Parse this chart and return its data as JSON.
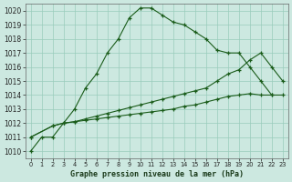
{
  "title": "Graphe pression niveau de la mer (hPa)",
  "bg_color": "#cce8e0",
  "grid_color": "#99ccbb",
  "line_color": "#1a5c1a",
  "x_labels": [
    "0",
    "1",
    "2",
    "3",
    "4",
    "5",
    "6",
    "7",
    "8",
    "9",
    "10",
    "11",
    "12",
    "13",
    "14",
    "15",
    "16",
    "17",
    "18",
    "19",
    "20",
    "21",
    "22",
    "23"
  ],
  "ylim": [
    1009.5,
    1020.5
  ],
  "yticks": [
    1010,
    1011,
    1012,
    1013,
    1014,
    1015,
    1016,
    1017,
    1018,
    1019,
    1020
  ],
  "line1_x": [
    0,
    1,
    2,
    3,
    4,
    5,
    6,
    7,
    8,
    9,
    10,
    11,
    12,
    13,
    14,
    15,
    16,
    17,
    18,
    19,
    20,
    21,
    22
  ],
  "line1_y": [
    1010.0,
    1011.0,
    1011.0,
    1012.0,
    1013.0,
    1014.5,
    1015.5,
    1017.0,
    1018.0,
    1019.5,
    1020.2,
    1020.2,
    1019.7,
    1019.2,
    1019.0,
    1018.5,
    1018.0,
    1017.2,
    1017.0,
    1017.0,
    1016.0,
    1015.0,
    1014.0
  ],
  "line2_x": [
    0,
    2,
    3,
    4,
    5,
    6,
    7,
    8,
    9,
    10,
    11,
    12,
    13,
    14,
    15,
    16,
    17,
    18,
    19,
    20,
    21,
    22,
    23
  ],
  "line2_y": [
    1011.0,
    1011.8,
    1012.0,
    1012.1,
    1012.2,
    1012.3,
    1012.4,
    1012.5,
    1012.6,
    1012.7,
    1012.8,
    1012.9,
    1013.0,
    1013.2,
    1013.3,
    1013.5,
    1013.7,
    1013.9,
    1014.0,
    1014.1,
    1014.0,
    1014.0,
    1014.0
  ],
  "line3_x": [
    0,
    2,
    3,
    4,
    5,
    6,
    7,
    8,
    9,
    10,
    11,
    12,
    13,
    14,
    15,
    16,
    17,
    18,
    19,
    20,
    21,
    22,
    23
  ],
  "line3_y": [
    1011.0,
    1011.8,
    1012.0,
    1012.1,
    1012.3,
    1012.5,
    1012.7,
    1012.9,
    1013.1,
    1013.3,
    1013.5,
    1013.7,
    1013.9,
    1014.1,
    1014.3,
    1014.5,
    1015.0,
    1015.5,
    1015.8,
    1016.5,
    1017.0,
    1016.0,
    1015.0
  ]
}
